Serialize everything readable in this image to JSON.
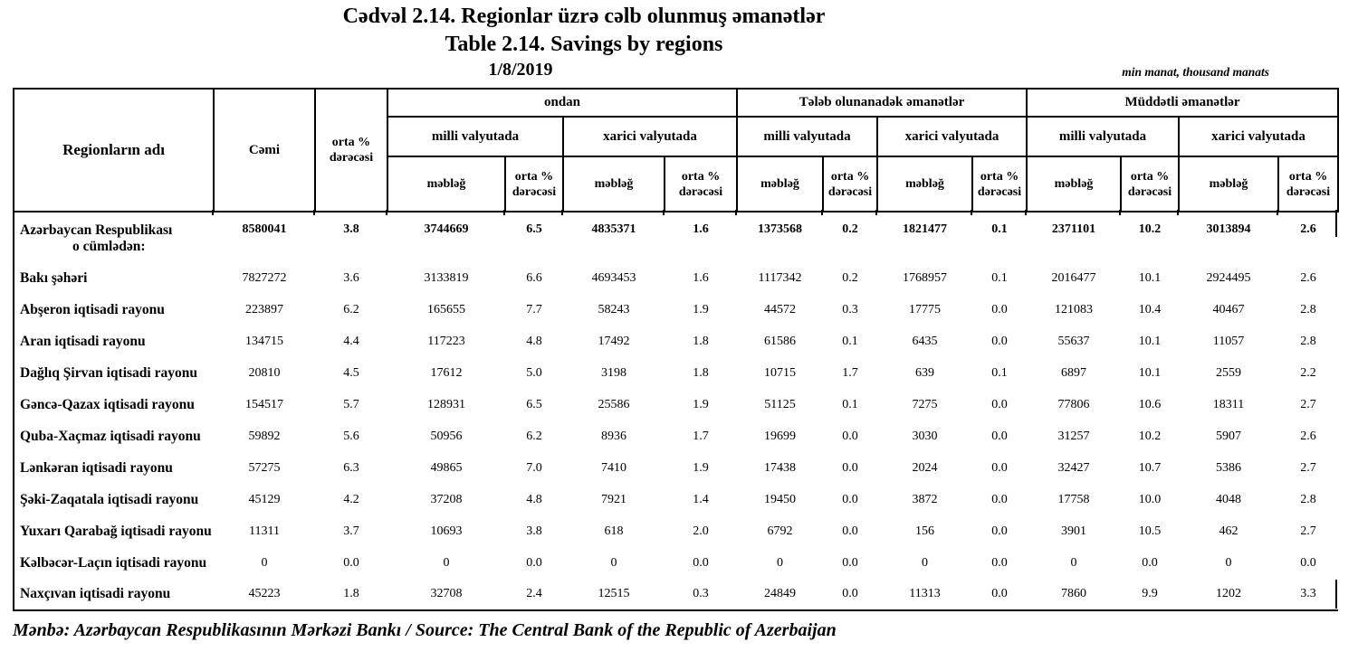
{
  "header": {
    "title_az": "Cədvəl 2.14. Regionlar üzrə cəlb olunmuş əmanətlər",
    "title_en": "Table 2.14. Savings by regions",
    "date": "1/8/2019",
    "unit_note": "min manat, thousand manats"
  },
  "table": {
    "col_headers": {
      "region": "Regionların adı",
      "total": "Cəmi",
      "avg_rate": "orta % dərəcəsi",
      "groups": [
        "ondan",
        "Tələb olunanadək əmanətlər",
        "Müddətli əmanətlər"
      ],
      "currency_national": "milli valyutada",
      "currency_foreign": "xarici valyutada",
      "amount": "məbləğ",
      "rate": "orta % dərəcəsi"
    },
    "rows": [
      {
        "region": "Azərbaycan Respublikası",
        "region_sub": "o cümlədən:",
        "bold": true,
        "values": [
          "8580041",
          "3.8",
          "3744669",
          "6.5",
          "4835371",
          "1.6",
          "1373568",
          "0.2",
          "1821477",
          "0.1",
          "2371101",
          "10.2",
          "3013894",
          "2.6"
        ]
      },
      {
        "region": "Bakı şəhəri",
        "values": [
          "7827272",
          "3.6",
          "3133819",
          "6.6",
          "4693453",
          "1.6",
          "1117342",
          "0.2",
          "1768957",
          "0.1",
          "2016477",
          "10.1",
          "2924495",
          "2.6"
        ]
      },
      {
        "region": "Abşeron iqtisadi rayonu",
        "values": [
          "223897",
          "6.2",
          "165655",
          "7.7",
          "58243",
          "1.9",
          "44572",
          "0.3",
          "17775",
          "0.0",
          "121083",
          "10.4",
          "40467",
          "2.8"
        ]
      },
      {
        "region": "Aran iqtisadi rayonu",
        "values": [
          "134715",
          "4.4",
          "117223",
          "4.8",
          "17492",
          "1.8",
          "61586",
          "0.1",
          "6435",
          "0.0",
          "55637",
          "10.1",
          "11057",
          "2.8"
        ]
      },
      {
        "region": "Dağlıq Şirvan iqtisadi rayonu",
        "values": [
          "20810",
          "4.5",
          "17612",
          "5.0",
          "3198",
          "1.8",
          "10715",
          "1.7",
          "639",
          "0.1",
          "6897",
          "10.1",
          "2559",
          "2.2"
        ]
      },
      {
        "region": "Gəncə-Qazax iqtisadi rayonu",
        "values": [
          "154517",
          "5.7",
          "128931",
          "6.5",
          "25586",
          "1.9",
          "51125",
          "0.1",
          "7275",
          "0.0",
          "77806",
          "10.6",
          "18311",
          "2.7"
        ]
      },
      {
        "region": "Quba-Xaçmaz iqtisadi rayonu",
        "values": [
          "59892",
          "5.6",
          "50956",
          "6.2",
          "8936",
          "1.7",
          "19699",
          "0.0",
          "3030",
          "0.0",
          "31257",
          "10.2",
          "5907",
          "2.6"
        ]
      },
      {
        "region": "Lənkəran iqtisadi rayonu",
        "values": [
          "57275",
          "6.3",
          "49865",
          "7.0",
          "7410",
          "1.9",
          "17438",
          "0.0",
          "2024",
          "0.0",
          "32427",
          "10.7",
          "5386",
          "2.7"
        ]
      },
      {
        "region": "Şəki-Zaqatala iqtisadi rayonu",
        "values": [
          "45129",
          "4.2",
          "37208",
          "4.8",
          "7921",
          "1.4",
          "19450",
          "0.0",
          "3872",
          "0.0",
          "17758",
          "10.0",
          "4048",
          "2.8"
        ]
      },
      {
        "region": "Yuxarı Qarabağ iqtisadi rayonu",
        "values": [
          "11311",
          "3.7",
          "10693",
          "3.8",
          "618",
          "2.0",
          "6792",
          "0.0",
          "156",
          "0.0",
          "3901",
          "10.5",
          "462",
          "2.7"
        ]
      },
      {
        "region": "Kəlbəcər-Laçın iqtisadi rayonu",
        "values": [
          "0",
          "0.0",
          "0",
          "0.0",
          "0",
          "0.0",
          "0",
          "0.0",
          "0",
          "0.0",
          "0",
          "0.0",
          "0",
          "0.0"
        ]
      },
      {
        "region": "Naxçıvan iqtisadi rayonu",
        "values": [
          "45223",
          "1.8",
          "32708",
          "2.4",
          "12515",
          "0.3",
          "24849",
          "0.0",
          "11313",
          "0.0",
          "7860",
          "9.9",
          "1202",
          "3.3"
        ]
      }
    ]
  },
  "footer": {
    "source": "Mənbə: Azərbaycan Respublikasının Mərkəzi Bankı / Source: The Central Bank of the Republic of Azerbaijan"
  },
  "colors": {
    "text": "#000000",
    "border": "#000000",
    "background": "#ffffff"
  }
}
